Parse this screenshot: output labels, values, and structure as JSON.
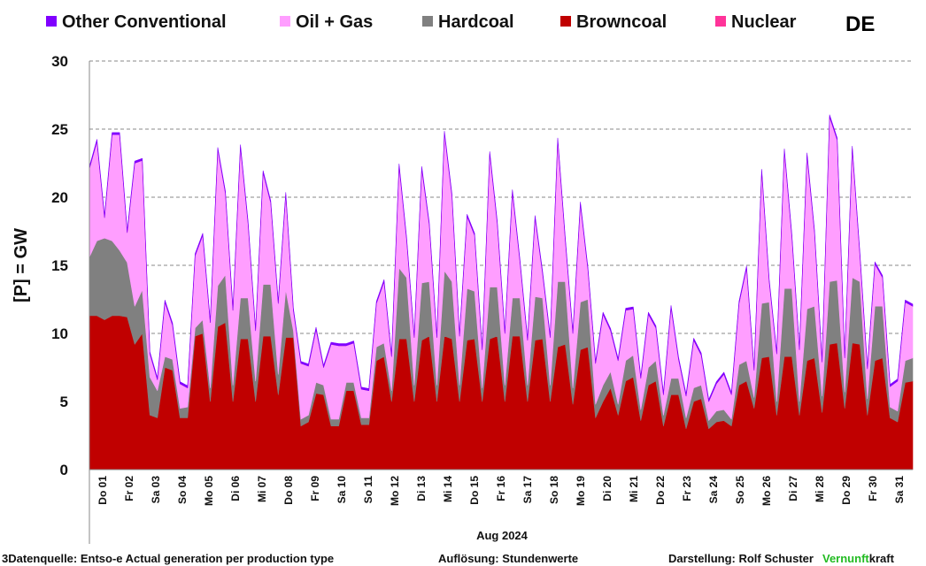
{
  "chart_data": {
    "type": "area",
    "stacked": true,
    "country": "DE",
    "ylabel": "[P] =  GW",
    "xlabel": "Aug 2024",
    "ylim": [
      0,
      30
    ],
    "yticks": [
      0,
      5,
      10,
      15,
      20,
      25,
      30
    ],
    "grid": true,
    "legend_position": "top",
    "day_labels": [
      "Do 01",
      "Fr 02",
      "Sa 03",
      "So 04",
      "Mo 05",
      "Di 06",
      "Mi 07",
      "Do 08",
      "Fr 09",
      "Sa 10",
      "So 11",
      "Mo 12",
      "Di 13",
      "Mi 14",
      "Do 15",
      "Fr 16",
      "Sa 17",
      "So 18",
      "Mo 19",
      "Di 20",
      "Mi 21",
      "Do 22",
      "Fr 23",
      "Sa 24",
      "So 25",
      "Mo 26",
      "Di 27",
      "Mi 28",
      "Do 29",
      "Fr 30",
      "Sa 31"
    ],
    "series": [
      {
        "name": "Browncoal",
        "color": "#c00000",
        "values": [
          11.3,
          11.3,
          11.0,
          11.3,
          11.3,
          11.2,
          9.2,
          10.0,
          4.0,
          3.8,
          7.5,
          7.3,
          3.8,
          3.8,
          9.8,
          10.0,
          5.0,
          10.5,
          10.8,
          5.0,
          9.6,
          9.6,
          5.0,
          9.8,
          9.8,
          5.5,
          9.7,
          9.7,
          3.2,
          3.5,
          5.6,
          5.5,
          3.2,
          3.2,
          5.8,
          5.8,
          3.3,
          3.3,
          8.0,
          8.3,
          5.0,
          9.6,
          9.6,
          5.0,
          9.5,
          9.8,
          5.0,
          9.8,
          9.6,
          5.0,
          9.5,
          9.6,
          5.0,
          9.6,
          9.8,
          5.0,
          9.8,
          9.8,
          5.0,
          9.5,
          9.6,
          5.0,
          9.0,
          9.2,
          4.8,
          8.8,
          9.0,
          3.8,
          5.0,
          6.0,
          4.0,
          6.5,
          6.8,
          3.6,
          6.2,
          6.5,
          3.2,
          5.5,
          5.5,
          3.0,
          5.0,
          5.2,
          3.0,
          3.5,
          3.6,
          3.2,
          6.2,
          6.5,
          4.5,
          8.2,
          8.3,
          4.0,
          8.3,
          8.3,
          4.0,
          8.0,
          8.2,
          4.2,
          9.2,
          9.3,
          4.5,
          9.3,
          9.2,
          4.0,
          8.0,
          8.2,
          3.8,
          3.5,
          6.4,
          6.5
        ]
      },
      {
        "name": "Hardcoal",
        "color": "#808080",
        "values": [
          4.3,
          5.5,
          6.0,
          5.5,
          4.8,
          4.0,
          2.8,
          3.2,
          2.8,
          2.0,
          0.8,
          0.8,
          0.7,
          0.8,
          0.6,
          1.0,
          1.0,
          3.0,
          3.5,
          1.2,
          3.0,
          3.0,
          1.5,
          3.8,
          3.8,
          1.5,
          3.5,
          0.5,
          0.5,
          0.5,
          0.8,
          0.7,
          0.5,
          0.5,
          0.6,
          0.6,
          0.5,
          0.5,
          1.0,
          1.0,
          0.8,
          5.2,
          4.5,
          1.2,
          4.2,
          4.0,
          1.2,
          4.8,
          4.2,
          1.2,
          3.8,
          3.5,
          1.0,
          3.8,
          3.6,
          1.2,
          2.8,
          2.8,
          1.2,
          3.2,
          3.0,
          1.2,
          4.8,
          4.6,
          1.2,
          3.5,
          3.5,
          1.0,
          1.2,
          1.2,
          0.8,
          1.5,
          1.6,
          0.8,
          1.3,
          1.5,
          0.8,
          1.2,
          1.2,
          0.8,
          1.0,
          1.0,
          0.6,
          0.8,
          0.8,
          0.5,
          1.5,
          1.5,
          0.8,
          4.0,
          4.0,
          1.0,
          5.0,
          5.0,
          1.0,
          3.8,
          3.8,
          1.2,
          4.6,
          4.6,
          1.2,
          4.8,
          4.6,
          1.2,
          4.0,
          3.8,
          0.8,
          0.8,
          1.6,
          1.7
        ]
      },
      {
        "name": "Oil + Gas",
        "color": "#ff9eff",
        "values": [
          6.5,
          7.3,
          1.5,
          7.8,
          8.5,
          2.2,
          10.5,
          9.5,
          1.7,
          0.8,
          4.0,
          2.5,
          1.8,
          1.4,
          5.3,
          6.2,
          4.8,
          10.0,
          6.0,
          5.5,
          11.1,
          5.5,
          3.7,
          8.2,
          6.0,
          5.2,
          7.0,
          1.5,
          4.1,
          3.6,
          3.9,
          1.3,
          5.5,
          5.4,
          2.7,
          2.9,
          2.1,
          2.0,
          3.2,
          4.5,
          2.5,
          7.5,
          2.8,
          3.5,
          8.4,
          4.2,
          3.5,
          10.1,
          6.3,
          3.6,
          5.3,
          4.1,
          2.8,
          9.8,
          4.7,
          3.8,
          7.8,
          2.7,
          3.3,
          5.8,
          1.8,
          3.5,
          10.4,
          3.1,
          4.0,
          7.2,
          2.2,
          3.0,
          5.2,
          3.0,
          3.2,
          3.7,
          3.4,
          2.3,
          3.9,
          2.4,
          1.5,
          5.2,
          1.4,
          1.6,
          3.5,
          2.2,
          1.4,
          2.0,
          2.6,
          1.8,
          4.5,
          6.8,
          2.0,
          9.7,
          1.5,
          3.5,
          10.1,
          3.8,
          3.8,
          11.3,
          5.4,
          2.5,
          12.1,
          10.3,
          2.5,
          9.5,
          2.0,
          2.2,
          3.1,
          2.1,
          1.5,
          2.2,
          4.3,
          3.8
        ]
      },
      {
        "name": "Nuclear",
        "color": "#ff3399",
        "values": [
          0,
          0,
          0,
          0,
          0,
          0,
          0,
          0,
          0,
          0,
          0,
          0,
          0,
          0,
          0,
          0,
          0,
          0,
          0,
          0,
          0,
          0,
          0,
          0,
          0,
          0,
          0,
          0,
          0,
          0,
          0,
          0,
          0,
          0,
          0,
          0,
          0,
          0,
          0,
          0,
          0,
          0,
          0,
          0,
          0,
          0,
          0,
          0,
          0,
          0,
          0,
          0,
          0,
          0,
          0,
          0,
          0,
          0,
          0,
          0,
          0,
          0,
          0,
          0,
          0,
          0,
          0,
          0,
          0,
          0,
          0,
          0,
          0,
          0,
          0,
          0,
          0,
          0,
          0,
          0,
          0,
          0,
          0,
          0,
          0,
          0,
          0,
          0,
          0,
          0,
          0,
          0,
          0,
          0,
          0,
          0,
          0,
          0,
          0,
          0,
          0,
          0,
          0,
          0,
          0,
          0,
          0,
          0,
          0,
          0
        ]
      },
      {
        "name": "Other Conventional",
        "color": "#8000ff",
        "values": [
          0.15,
          0.15,
          0.15,
          0.15,
          0.15,
          0.15,
          0.15,
          0.15,
          0.15,
          0.15,
          0.15,
          0.15,
          0.15,
          0.15,
          0.15,
          0.15,
          0.15,
          0.15,
          0.15,
          0.15,
          0.15,
          0.15,
          0.15,
          0.15,
          0.15,
          0.15,
          0.15,
          0.15,
          0.15,
          0.15,
          0.15,
          0.15,
          0.15,
          0.15,
          0.15,
          0.15,
          0.15,
          0.15,
          0.15,
          0.15,
          0.15,
          0.15,
          0.15,
          0.15,
          0.15,
          0.15,
          0.15,
          0.15,
          0.15,
          0.15,
          0.15,
          0.15,
          0.15,
          0.15,
          0.15,
          0.15,
          0.15,
          0.15,
          0.15,
          0.15,
          0.15,
          0.15,
          0.15,
          0.15,
          0.15,
          0.15,
          0.15,
          0.15,
          0.15,
          0.15,
          0.15,
          0.15,
          0.15,
          0.15,
          0.15,
          0.15,
          0.15,
          0.15,
          0.15,
          0.15,
          0.15,
          0.15,
          0.15,
          0.15,
          0.15,
          0.15,
          0.15,
          0.15,
          0.15,
          0.15,
          0.15,
          0.15,
          0.15,
          0.15,
          0.15,
          0.15,
          0.15,
          0.15,
          0.15,
          0.15,
          0.15,
          0.15,
          0.15,
          0.15,
          0.15,
          0.15,
          0.15,
          0.15,
          0.15,
          0.15
        ]
      }
    ],
    "legend": [
      {
        "name": "Other Conventional",
        "color": "#8000ff"
      },
      {
        "name": "Oil + Gas",
        "color": "#ff9eff"
      },
      {
        "name": "Hardcoal",
        "color": "#808080"
      },
      {
        "name": "Browncoal",
        "color": "#c00000"
      },
      {
        "name": "Nuclear",
        "color": "#ff3399"
      }
    ]
  },
  "footer": {
    "source": "3Datenquelle: Entso-e  Actual generation per production type",
    "resolution": "Auflösung:  Stundenwerte",
    "author": "Darstellung:  Rolf Schuster",
    "brand_part1": "Vernunft",
    "brand_part2": "kraft"
  }
}
